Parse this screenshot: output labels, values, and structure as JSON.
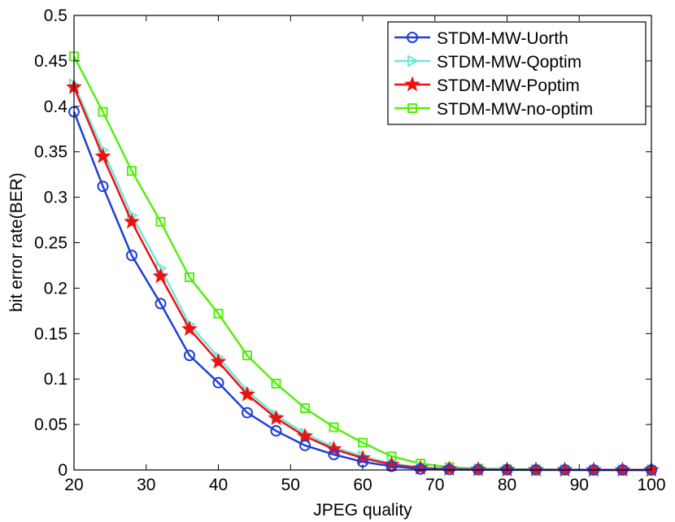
{
  "chart_data": {
    "type": "line",
    "title": "",
    "xlabel": "JPEG quality",
    "ylabel": "bit error rate(BER)",
    "xlim": [
      20,
      100
    ],
    "ylim": [
      0,
      0.5
    ],
    "xticks": [
      "20",
      "30",
      "40",
      "50",
      "60",
      "70",
      "80",
      "90",
      "100"
    ],
    "yticks": [
      "0",
      "0.05",
      "0.1",
      "0.15",
      "0.2",
      "0.25",
      "0.3",
      "0.35",
      "0.4",
      "0.45",
      "0.5"
    ],
    "xtick_values": [
      20,
      30,
      40,
      50,
      60,
      70,
      80,
      90,
      100
    ],
    "ytick_values": [
      0,
      0.05,
      0.1,
      0.15,
      0.2,
      0.25,
      0.3,
      0.35,
      0.4,
      0.45,
      0.5
    ],
    "grid": false,
    "legend_position": "top-right",
    "x": [
      20,
      24,
      28,
      32,
      36,
      40,
      44,
      48,
      52,
      56,
      60,
      64,
      68,
      72,
      76,
      80,
      84,
      88,
      92,
      96,
      100
    ],
    "series": [
      {
        "name": "STDM-MW-Uorth",
        "color": "#1f3fd8",
        "marker": "circle",
        "values": [
          0.394,
          0.312,
          0.236,
          0.183,
          0.126,
          0.096,
          0.063,
          0.043,
          0.027,
          0.017,
          0.009,
          0.004,
          0.001,
          0.0005,
          0.0003,
          0.0002,
          0.0001,
          0.0001,
          0.0,
          0.0,
          0.0
        ]
      },
      {
        "name": "STDM-MW-Qoptim",
        "color": "#6fe8d8",
        "marker": "triangle-right",
        "values": [
          0.424,
          0.352,
          0.28,
          0.222,
          0.16,
          0.124,
          0.087,
          0.06,
          0.04,
          0.025,
          0.015,
          0.007,
          0.003,
          0.001,
          0.0005,
          0.0003,
          0.0002,
          0.0001,
          0.0,
          0.0,
          0.0
        ]
      },
      {
        "name": "STDM-MW-Poptim",
        "color": "#ee1111",
        "marker": "star",
        "values": [
          0.421,
          0.345,
          0.273,
          0.213,
          0.155,
          0.119,
          0.083,
          0.057,
          0.037,
          0.023,
          0.013,
          0.006,
          0.002,
          0.001,
          0.0005,
          0.0003,
          0.0002,
          0.0001,
          0.0,
          0.0,
          0.0
        ]
      },
      {
        "name": "STDM-MW-no-optim",
        "color": "#55ee11",
        "marker": "square",
        "values": [
          0.455,
          0.394,
          0.329,
          0.273,
          0.212,
          0.172,
          0.126,
          0.095,
          0.068,
          0.047,
          0.03,
          0.015,
          0.007,
          0.003,
          0.0015,
          0.001,
          0.0005,
          0.0003,
          0.0001,
          0.0,
          0.0
        ]
      }
    ]
  }
}
